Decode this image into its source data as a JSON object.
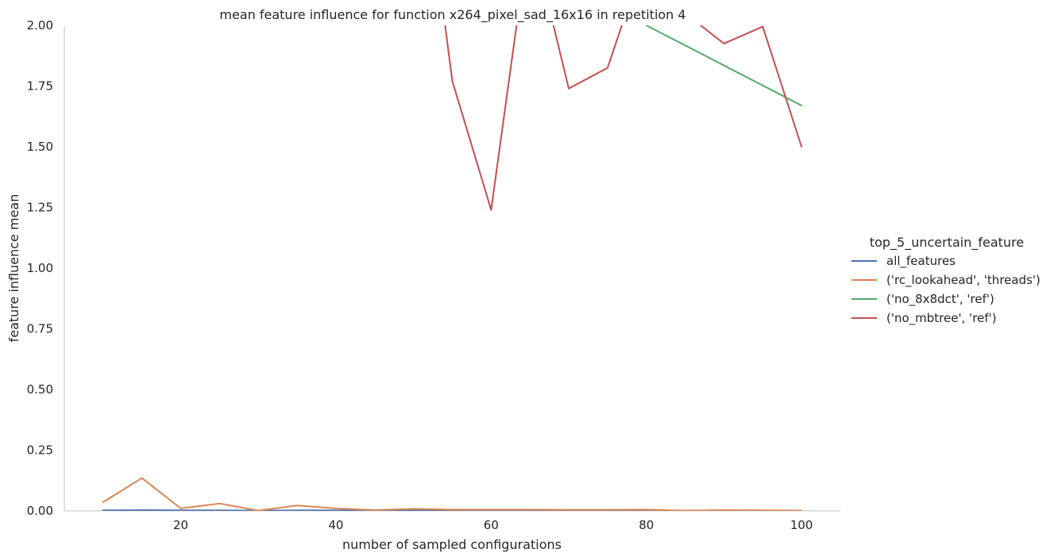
{
  "chart_data": {
    "type": "line",
    "title": "mean feature influence for function x264_pixel_sad_16x16 in repetition 4",
    "xlabel": "number of sampled configurations",
    "ylabel": "feature influence mean",
    "xlim": [
      5,
      105
    ],
    "ylim": [
      0,
      2.0
    ],
    "xticks": [
      20,
      40,
      60,
      80,
      100
    ],
    "yticks": [
      0.0,
      0.25,
      0.5,
      0.75,
      1.0,
      1.25,
      1.5,
      1.75,
      2.0
    ],
    "xtick_labels": [
      "20",
      "40",
      "60",
      "80",
      "100"
    ],
    "ytick_labels": [
      "0.00",
      "0.25",
      "0.50",
      "0.75",
      "1.00",
      "1.25",
      "1.50",
      "1.75",
      "2.00"
    ],
    "grid": false,
    "legend": {
      "title": "top_5_uncertain_feature",
      "placement": "right"
    },
    "series": [
      {
        "name": "all_features",
        "color": "#4c72b0",
        "x": [
          10,
          15,
          20,
          25,
          30,
          35,
          40,
          45,
          50,
          55,
          60,
          65,
          70,
          75,
          80,
          85,
          90,
          95,
          100
        ],
        "values": [
          0.002,
          0.003,
          0.002,
          0.002,
          0.001,
          0.002,
          0.002,
          0.001,
          0.002,
          0.002,
          0.002,
          0.002,
          0.002,
          0.002,
          0.002,
          0.001,
          0.002,
          0.002,
          0.001
        ]
      },
      {
        "name": "('rc_lookahead', 'threads')",
        "color": "#dd8452",
        "x": [
          10,
          15,
          20,
          25,
          30,
          35,
          40,
          45,
          50,
          55,
          60,
          65,
          70,
          75,
          80,
          85,
          90,
          95,
          100
        ],
        "values": [
          0.036,
          0.135,
          0.01,
          0.03,
          0.001,
          0.022,
          0.01,
          0.003,
          0.008,
          0.005,
          0.005,
          0.005,
          0.004,
          0.004,
          0.005,
          0.001,
          0.003,
          0.002,
          0.001
        ]
      },
      {
        "name": "('no_8x8dct', 'ref')",
        "color": "#55a868",
        "x": [
          75,
          80,
          100
        ],
        "values": [
          2.3,
          2.0,
          1.67
        ]
      },
      {
        "name": "('no_mbtree', 'ref')",
        "color": "#c44e52",
        "x": [
          50,
          55,
          60,
          65,
          70,
          75,
          80,
          85,
          90,
          95,
          100
        ],
        "values": [
          3.0,
          1.77,
          1.24,
          2.4,
          1.74,
          1.825,
          2.3,
          2.05,
          1.925,
          1.995,
          1.5
        ]
      }
    ]
  }
}
